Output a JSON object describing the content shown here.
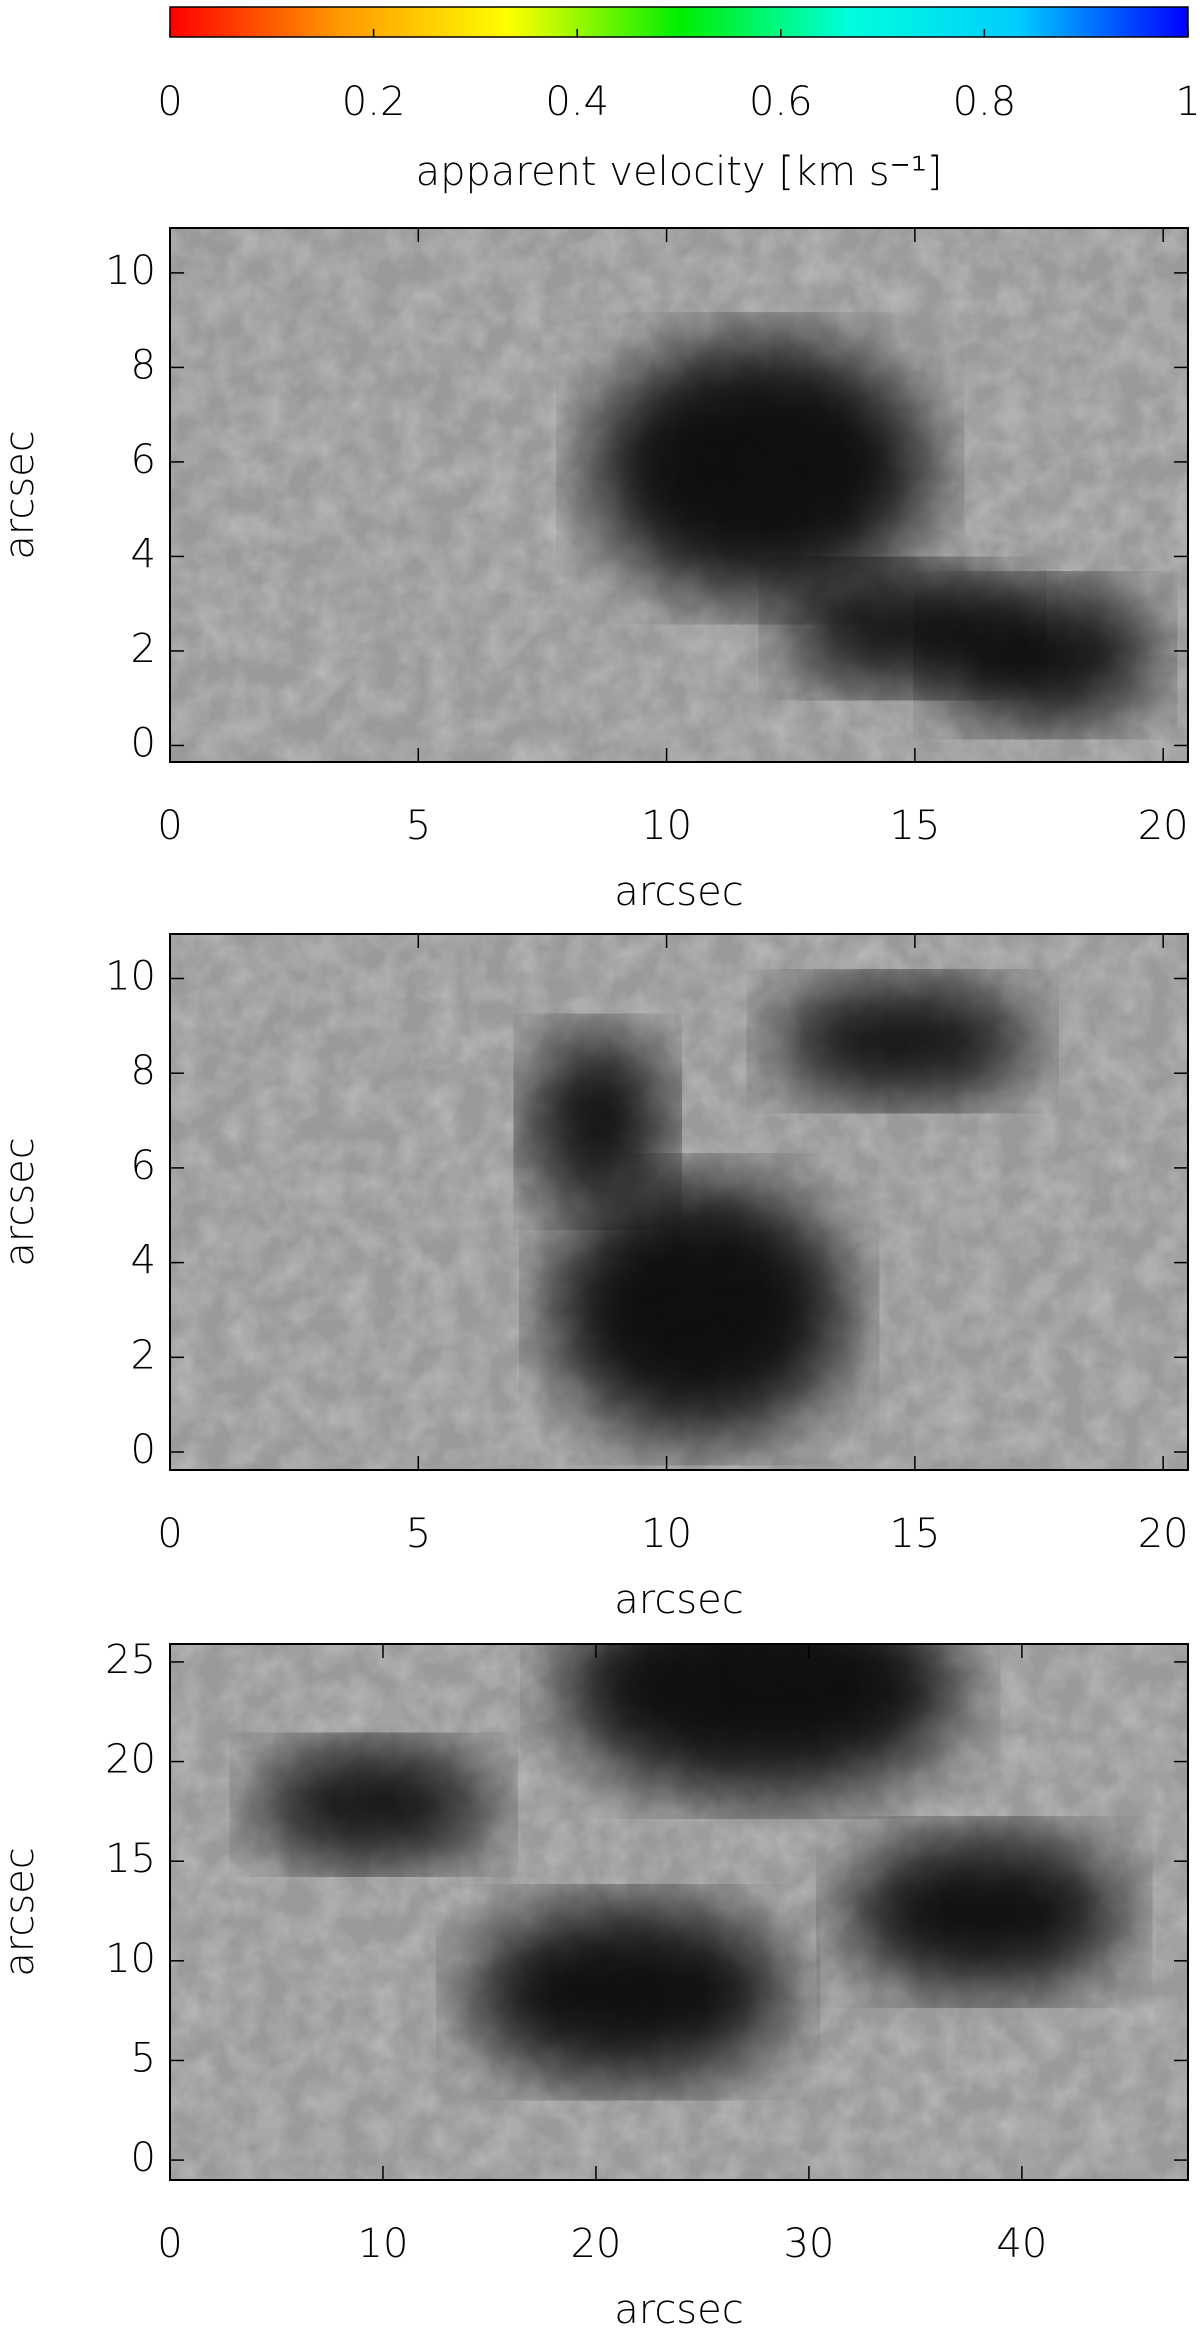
{
  "chart_data": [
    {
      "type": "colorbar",
      "label": "apparent velocity [km s⁻¹]",
      "xlim": [
        0,
        1
      ],
      "xticks": [
        0,
        0.2,
        0.4,
        0.6,
        0.8,
        1
      ],
      "colors": [
        "#ff0000",
        "#ff9900",
        "#ffff00",
        "#00ee00",
        "#00ffdd",
        "#00ccff",
        "#0000ff"
      ]
    },
    {
      "type": "quiver",
      "xlabel": "arcsec",
      "ylabel": "arcsec",
      "xlim": [
        0,
        20.5
      ],
      "ylim": [
        -0.35,
        10.95
      ],
      "xticks": [
        0,
        5,
        10,
        15,
        20
      ],
      "yticks": [
        0,
        2,
        4,
        6,
        8,
        10
      ]
    },
    {
      "type": "quiver",
      "xlabel": "arcsec",
      "ylabel": "arcsec",
      "xlim": [
        0,
        20.5
      ],
      "ylim": [
        -0.38,
        10.94
      ],
      "xticks": [
        0,
        5,
        10,
        15,
        20
      ],
      "yticks": [
        0,
        2,
        4,
        6,
        8,
        10
      ]
    },
    {
      "type": "quiver",
      "xlabel": "arcsec",
      "ylabel": "arcsec",
      "xlim": [
        0,
        47.8
      ],
      "ylim": [
        -1,
        25.9
      ],
      "xticks": [
        0,
        10,
        20,
        30,
        40
      ],
      "yticks": [
        0,
        5,
        10,
        15,
        20,
        25
      ]
    }
  ]
}
